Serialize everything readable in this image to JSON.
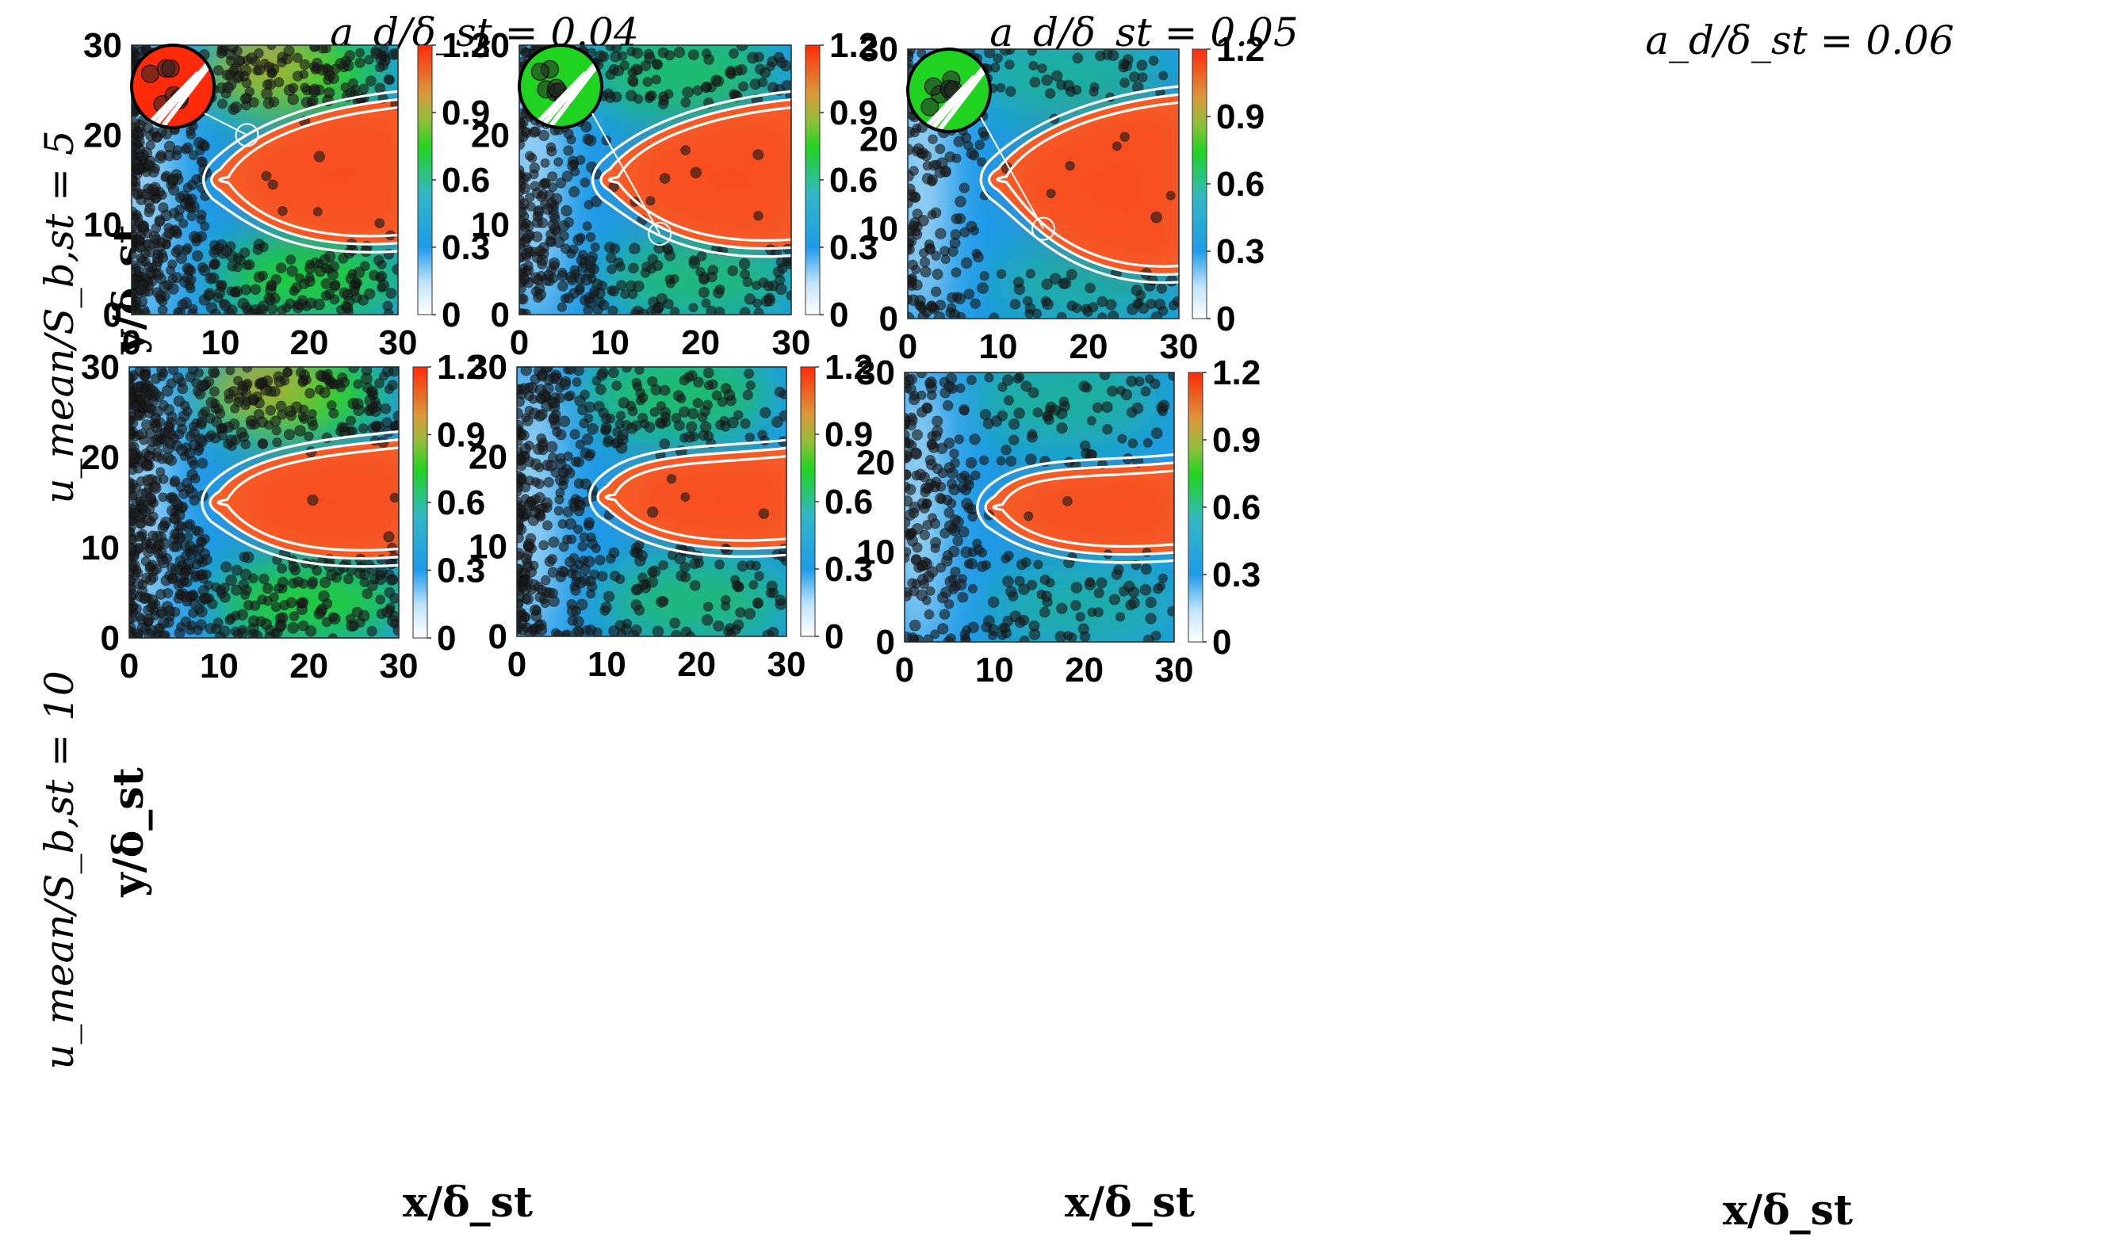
{
  "figure": {
    "column_titles": [
      "a_d/δ_st = 0.04",
      "a_d/δ_st = 0.05",
      "a_d/δ_st = 0.06"
    ],
    "row_titles": [
      "u_mean/S_b,st = 5",
      "u_mean/S_b,st = 10"
    ],
    "xlabel": "x/δ_st",
    "ylabel": "y/δ_st",
    "colorbar": {
      "min": 0,
      "max": 1.2,
      "ticks": [
        "0",
        "0.3",
        "0.6",
        "0.9",
        "1.2"
      ]
    },
    "x_ticks": [
      "0",
      "10",
      "20",
      "30"
    ],
    "y_ticks": [
      "0",
      "10",
      "20",
      "30"
    ],
    "colors": {
      "low": "#ffffff",
      "mid_low": "#1e9be8",
      "mid": "#21d321",
      "mid_high": "#d99a3c",
      "high": "#ff2a0a",
      "contour": "#ffffff",
      "particle": "#1a1a1a"
    }
  },
  "chart_data": [
    {
      "type": "heatmap",
      "panel": "row1-col1",
      "title": "a_d/δ_st = 0.04",
      "row": "u_mean/S_b,st = 5",
      "xlabel": "x/δ_st",
      "ylabel": "y/δ_st",
      "xlim": [
        0,
        30
      ],
      "ylim": [
        0,
        30
      ],
      "clim": [
        0,
        1.2
      ],
      "flame_tip": [
        8.5,
        15
      ],
      "flame_top_end": 24,
      "flame_bottom_end": 8,
      "flame_width": 1.0,
      "particle_density": "high",
      "inset_zoom_at": [
        13,
        20
      ]
    },
    {
      "type": "heatmap",
      "panel": "row1-col2",
      "title": "a_d/δ_st = 0.05",
      "row": "u_mean/S_b,st = 5",
      "xlabel": "x/δ_st",
      "ylabel": "y/δ_st",
      "xlim": [
        0,
        30
      ],
      "ylim": [
        0,
        30
      ],
      "clim": [
        0,
        1.2
      ],
      "flame_tip": [
        8.5,
        15
      ],
      "flame_top_end": 24,
      "flame_bottom_end": 7.5,
      "flame_width": 1.0,
      "particle_density": "medium",
      "inset_zoom_at": [
        15.5,
        9
      ]
    },
    {
      "type": "heatmap",
      "panel": "row1-col3",
      "title": "a_d/δ_st = 0.06",
      "row": "u_mean/S_b,st = 5",
      "xlabel": "x/δ_st",
      "ylabel": "y/δ_st",
      "xlim": [
        0,
        30
      ],
      "ylim": [
        0,
        30
      ],
      "clim": [
        0,
        1.2
      ],
      "flame_tip": [
        8.5,
        15.5
      ],
      "flame_top_end": 25,
      "flame_bottom_end": 5,
      "flame_width": 1.0,
      "particle_density": "low",
      "inset_zoom_at": [
        15,
        10
      ]
    },
    {
      "type": "heatmap",
      "panel": "row2-col1",
      "title": "",
      "row": "u_mean/S_b,st = 10",
      "xlabel": "x/δ_st",
      "ylabel": "y/δ_st",
      "xlim": [
        0,
        30
      ],
      "ylim": [
        0,
        30
      ],
      "clim": [
        0,
        1.2
      ],
      "flame_tip": [
        8.5,
        15
      ],
      "flame_top_end": 22,
      "flame_bottom_end": 9,
      "flame_width": 1.0,
      "particle_density": "high"
    },
    {
      "type": "heatmap",
      "panel": "row2-col2",
      "title": "",
      "row": "u_mean/S_b,st = 10",
      "xlabel": "x/δ_st",
      "ylabel": "y/δ_st",
      "xlim": [
        0,
        30
      ],
      "ylim": [
        0,
        30
      ],
      "clim": [
        0,
        1.2
      ],
      "flame_tip": [
        8.5,
        15.5
      ],
      "flame_top_end": 21,
      "flame_bottom_end": 10,
      "flame_width": 1.0,
      "particle_density": "medium"
    },
    {
      "type": "heatmap",
      "panel": "row2-col3",
      "title": "",
      "row": "u_mean/S_b,st = 10",
      "xlabel": "x/δ_st",
      "ylabel": "y/δ_st",
      "xlim": [
        0,
        30
      ],
      "ylim": [
        0,
        30
      ],
      "clim": [
        0,
        1.2
      ],
      "flame_tip": [
        8.5,
        15
      ],
      "flame_top_end": 20,
      "flame_bottom_end": 10,
      "flame_width": 1.0,
      "particle_density": "low"
    }
  ]
}
